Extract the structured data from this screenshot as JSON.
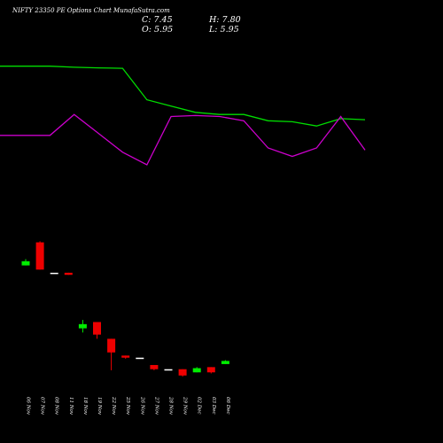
{
  "header": {
    "title": "NIFTY 23350  PE Options  Chart MunafaSutra.com",
    "close_label": "C: 7.45",
    "high_label": "H: 7.80",
    "open_label": "O: 5.95",
    "low_label": "L: 5.95"
  },
  "colors": {
    "background": "#000000",
    "bull": "#00ee00",
    "bear": "#ee0000",
    "doji": "#ffffff",
    "ma_fast": "#00dd00",
    "ma_slow": "#cc00cc"
  },
  "chart_data": {
    "type": "candlestick",
    "title": "NIFTY 23350  PE Options  Chart MunafaSutra.com",
    "categories": [
      "06 Nov",
      "07 Nov",
      "08 Nov",
      "11 Nov",
      "18 Nov",
      "19 Nov",
      "22 Nov",
      "25 Nov",
      "26 Nov",
      "27 Nov",
      "28 Nov",
      "29 Nov",
      "02 Dec",
      "03 Dec",
      "06 Dec"
    ],
    "candles": [
      {
        "date": "06 Nov",
        "open": 53,
        "close": 55,
        "high": 56,
        "low": 53
      },
      {
        "date": "07 Nov",
        "open": 64,
        "close": 51,
        "high": 64.5,
        "low": 51
      },
      {
        "date": "08 Nov",
        "open": 49.5,
        "close": 49.5,
        "high": 49.5,
        "low": 49.5
      },
      {
        "date": "11 Nov",
        "open": 49.5,
        "close": 48.5,
        "high": 49.5,
        "low": 48.5
      },
      {
        "date": "18 Nov",
        "open": 23,
        "close": 25,
        "high": 27,
        "low": 21
      },
      {
        "date": "19 Nov",
        "open": 26,
        "close": 20,
        "high": 26,
        "low": 18
      },
      {
        "date": "22 Nov",
        "open": 18,
        "close": 11.5,
        "high": 18,
        "low": 3
      },
      {
        "date": "25 Nov",
        "open": 10,
        "close": 9,
        "high": 10,
        "low": 8.5
      },
      {
        "date": "26 Nov",
        "open": 9,
        "close": 9,
        "high": 9,
        "low": 9
      },
      {
        "date": "27 Nov",
        "open": 5.5,
        "close": 3.5,
        "high": 5.5,
        "low": 3
      },
      {
        "date": "28 Nov",
        "open": 3.5,
        "close": 3.5,
        "high": 3.5,
        "low": 3.5
      },
      {
        "date": "29 Nov",
        "open": 3.5,
        "close": 0.5,
        "high": 3.5,
        "low": 0
      },
      {
        "date": "02 Dec",
        "open": 2,
        "close": 4,
        "high": 4.5,
        "low": 2
      },
      {
        "date": "03 Dec",
        "open": 4.5,
        "close": 2,
        "high": 4.5,
        "low": 1.5
      },
      {
        "date": "06 Dec",
        "open": 5.95,
        "close": 7.45,
        "high": 7.8,
        "low": 5.95
      }
    ],
    "series": [
      {
        "values": [
          148,
          148,
          147.5,
          147.2,
          147,
          132,
          129,
          126,
          125,
          125,
          122,
          121.5,
          119.5,
          123,
          122.5
        ]
      },
      {
        "values": [
          115,
          115,
          125,
          116,
          107,
          101,
          124,
          124.5,
          124,
          122,
          109,
          105,
          109,
          124,
          108
        ]
      }
    ],
    "y_range": [
      0,
      150
    ],
    "grid": false
  }
}
